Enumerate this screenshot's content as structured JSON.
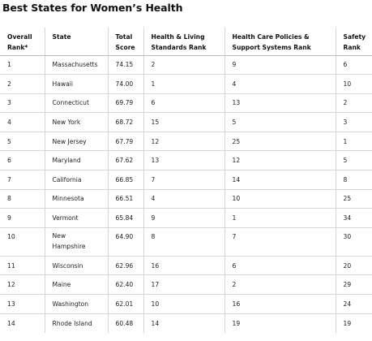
{
  "title": "Best States for Women’s Health",
  "headers": {
    "overall_rank_line1": "Overall",
    "overall_rank_line2": "Rank*",
    "state": "State",
    "total_score_line1": "Total",
    "total_score_line2": "Score",
    "health_living_line1": "Health & Living",
    "health_living_line2": "Standards Rank",
    "policies_line1": "Health Care Policies &",
    "policies_line2": "Support Systems Rank",
    "safety_line1": "Safety",
    "safety_line2": "Rank"
  },
  "rows": [
    {
      "rank": "1",
      "state": "Massachusetts",
      "score": "74.15",
      "health": "2",
      "policies": "9",
      "safety": "6"
    },
    {
      "rank": "2",
      "state": "Hawaii",
      "score": "74.00",
      "health": "1",
      "policies": "4",
      "safety": "10"
    },
    {
      "rank": "3",
      "state": "Connecticut",
      "score": "69.79",
      "health": "6",
      "policies": "13",
      "safety": "2"
    },
    {
      "rank": "4",
      "state": "New York",
      "score": "68.72",
      "health": "15",
      "policies": "5",
      "safety": "3"
    },
    {
      "rank": "5",
      "state": "New Jersey",
      "score": "67.79",
      "health": "12",
      "policies": "25",
      "safety": "1"
    },
    {
      "rank": "6",
      "state": "Maryland",
      "score": "67.62",
      "health": "13",
      "policies": "12",
      "safety": "5"
    },
    {
      "rank": "7",
      "state": "California",
      "score": "66.85",
      "health": "7",
      "policies": "14",
      "safety": "8"
    },
    {
      "rank": "8",
      "state": "Minnesota",
      "score": "66.51",
      "health": "4",
      "policies": "10",
      "safety": "25"
    },
    {
      "rank": "9",
      "state": "Vermont",
      "score": "65.84",
      "health": "9",
      "policies": "1",
      "safety": "34"
    },
    {
      "rank": "10",
      "state_line1": "New",
      "state_line2": "Hampshire",
      "score": "64.90",
      "health": "8",
      "policies": "7",
      "safety": "30"
    },
    {
      "rank": "11",
      "state": "Wisconsin",
      "score": "62.96",
      "health": "16",
      "policies": "6",
      "safety": "20"
    },
    {
      "rank": "12",
      "state": "Maine",
      "score": "62.40",
      "health": "17",
      "policies": "2",
      "safety": "29"
    },
    {
      "rank": "13",
      "state": "Washington",
      "score": "62.01",
      "health": "10",
      "policies": "16",
      "safety": "24"
    },
    {
      "rank": "14",
      "state": "Rhode Island",
      "score": "60.48",
      "health": "14",
      "policies": "19",
      "safety": "19"
    }
  ]
}
